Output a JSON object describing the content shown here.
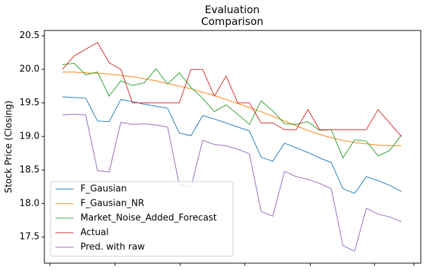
{
  "chart_data": {
    "type": "line",
    "title": "Evaluation Comparison",
    "ylabel": "Stock Price (Closing)",
    "x": [
      0,
      1,
      2,
      3,
      4,
      5,
      6,
      7,
      8,
      9,
      10,
      11,
      12,
      13,
      14,
      15,
      16,
      17,
      18,
      19,
      20,
      21,
      22,
      23,
      24,
      25,
      26,
      27,
      28,
      29
    ],
    "xlim": [
      -1.54,
      30.66
    ],
    "xticks": [
      -1.07,
      4.5,
      10.08,
      15.6,
      21.2,
      26.7,
      30.07
    ],
    "ylim": [
      17.11,
      20.58
    ],
    "yticks": [
      17.5,
      {
        "value": 18,
        "label": "18.0"
      },
      18.5,
      {
        "value": 19,
        "label": "19.0"
      },
      19.5,
      {
        "value": 20,
        "label": "20.0"
      },
      20.5
    ],
    "legend": "lower left",
    "series": [
      {
        "name": "F_Gausian",
        "color": "#1f77b4",
        "values": [
          19.59,
          19.58,
          19.57,
          19.23,
          19.22,
          19.55,
          19.52,
          19.48,
          19.45,
          19.42,
          19.05,
          19.01,
          19.31,
          19.26,
          19.2,
          19.14,
          19.08,
          18.69,
          18.63,
          18.9,
          18.83,
          18.76,
          18.68,
          18.61,
          18.22,
          18.15,
          18.4,
          18.34,
          18.27,
          18.18
        ]
      },
      {
        "name": "F_Gausian_NR",
        "color": "#ff7f0e",
        "values": [
          19.96,
          19.96,
          19.95,
          19.94,
          19.93,
          19.91,
          19.89,
          19.86,
          19.83,
          19.79,
          19.75,
          19.71,
          19.66,
          19.61,
          19.55,
          19.49,
          19.43,
          19.37,
          19.3,
          19.23,
          19.16,
          19.09,
          19.03,
          18.98,
          18.94,
          18.91,
          18.89,
          18.87,
          18.86,
          18.86
        ]
      },
      {
        "name": "Market_Noise_Added_Forecast",
        "color": "#2ca02c",
        "values": [
          20.07,
          20.09,
          19.92,
          19.96,
          19.6,
          19.83,
          19.76,
          19.8,
          20.01,
          19.78,
          19.95,
          19.73,
          19.57,
          19.37,
          19.47,
          19.33,
          19.18,
          19.53,
          19.38,
          19.19,
          19.18,
          19.22,
          19.09,
          19.1,
          18.68,
          18.95,
          18.93,
          18.71,
          18.79,
          19.02
        ]
      },
      {
        "name": "Actual",
        "color": "#d62728",
        "values": [
          20.0,
          20.2,
          20.3,
          20.4,
          20.1,
          20.0,
          19.5,
          19.5,
          19.5,
          19.5,
          19.5,
          20.0,
          20.0,
          19.6,
          19.9,
          19.5,
          19.5,
          19.2,
          19.2,
          19.1,
          19.1,
          19.4,
          19.1,
          19.1,
          19.1,
          19.1,
          19.1,
          19.4,
          19.2,
          19.0
        ]
      },
      {
        "name": "Pred. with raw",
        "color": "#9467bd",
        "values": [
          19.32,
          19.33,
          19.32,
          18.49,
          18.47,
          19.21,
          19.18,
          19.19,
          19.17,
          19.14,
          18.28,
          18.24,
          18.94,
          18.88,
          18.86,
          18.81,
          18.74,
          17.88,
          17.81,
          18.48,
          18.4,
          18.36,
          18.3,
          18.22,
          17.37,
          17.29,
          17.93,
          17.84,
          17.8,
          17.73
        ]
      }
    ]
  }
}
